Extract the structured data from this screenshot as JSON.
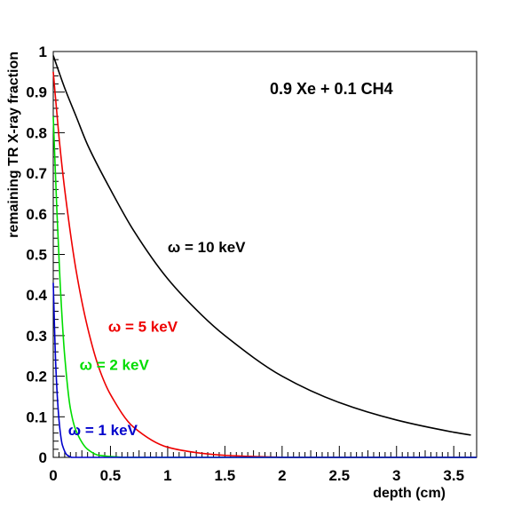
{
  "chart_data": {
    "type": "line",
    "title": "0.9 Xe + 0.1 CH4",
    "xlabel": "depth (cm)",
    "ylabel": "remaining TR X-ray fraction",
    "xlim": [
      0,
      3.7
    ],
    "ylim": [
      0,
      1
    ],
    "xticks": [
      0,
      0.5,
      1,
      1.5,
      2,
      2.5,
      3,
      3.5
    ],
    "xtick_labels": [
      "0",
      "0.5",
      "1",
      "1.5",
      "2",
      "2.5",
      "3",
      "3.5"
    ],
    "yticks": [
      0,
      0.1,
      0.2,
      0.3,
      0.4,
      0.5,
      0.6,
      0.7,
      0.8,
      0.9,
      1
    ],
    "ytick_labels": [
      "0",
      "0.1",
      "0.2",
      "0.3",
      "0.4",
      "0.5",
      "0.6",
      "0.7",
      "0.8",
      "0.9",
      "1"
    ],
    "grid": false,
    "series": [
      {
        "name": "ω = 10 keV",
        "color": "#000000",
        "x": [
          0,
          0.1,
          0.2,
          0.3,
          0.5,
          0.7,
          1.0,
          1.3,
          1.5,
          2.0,
          2.5,
          3.0,
          3.5,
          3.65
        ],
        "y": [
          0.99,
          0.91,
          0.84,
          0.77,
          0.66,
          0.56,
          0.44,
          0.35,
          0.3,
          0.2,
          0.135,
          0.092,
          0.062,
          0.055
        ]
      },
      {
        "name": "ω = 5 keV",
        "color": "#ee0000",
        "x": [
          0,
          0.05,
          0.1,
          0.2,
          0.3,
          0.4,
          0.5,
          0.7,
          1.0,
          1.3,
          1.5,
          2.0
        ],
        "y": [
          0.95,
          0.79,
          0.66,
          0.46,
          0.32,
          0.22,
          0.155,
          0.075,
          0.025,
          0.01,
          0.005,
          0.0
        ]
      },
      {
        "name": "ω = 2 keV",
        "color": "#00dd00",
        "x": [
          0,
          0.03,
          0.06,
          0.1,
          0.15,
          0.2,
          0.3,
          0.4,
          0.6
        ],
        "y": [
          0.84,
          0.62,
          0.43,
          0.25,
          0.12,
          0.065,
          0.02,
          0.005,
          0.0
        ]
      },
      {
        "name": "ω = 1 keV",
        "color": "#0000cc",
        "x": [
          0,
          0.01,
          0.02,
          0.04,
          0.06,
          0.08,
          0.12,
          0.16
        ],
        "y": [
          0.43,
          0.33,
          0.24,
          0.13,
          0.065,
          0.03,
          0.006,
          0.0
        ]
      }
    ],
    "annotations": [
      {
        "text": "ω = 10 keV",
        "color": "#000000",
        "x": 1.0,
        "y": 0.505
      },
      {
        "text": "ω = 5 keV",
        "color": "#ee0000",
        "x": 0.48,
        "y": 0.31
      },
      {
        "text": "ω = 2 keV",
        "color": "#00dd00",
        "x": 0.23,
        "y": 0.215
      },
      {
        "text": "ω = 1 keV",
        "color": "#0000cc",
        "x": 0.13,
        "y": 0.055
      }
    ]
  }
}
